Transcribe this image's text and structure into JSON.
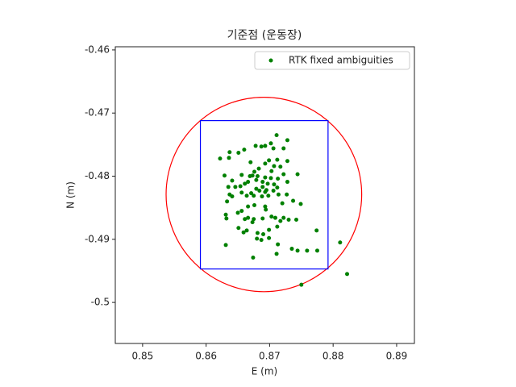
{
  "chart_data": {
    "type": "scatter",
    "title": "기준점 (운동장)",
    "x_label": "E (m)",
    "y_label": "N (m)",
    "xlim": [
      0.8457,
      0.8928
    ],
    "ylim": [
      -0.5065,
      -0.4595
    ],
    "xticks": [
      0.85,
      0.86,
      0.87,
      0.88,
      0.89
    ],
    "yticks": [
      -0.46,
      -0.47,
      -0.48,
      -0.49,
      -0.5
    ],
    "grid": false,
    "legend": "upper right",
    "series": [
      {
        "name": "RTK fixed ambiguities",
        "color": "green",
        "x": [
          0.8711,
          0.8728,
          0.8702,
          0.8693,
          0.8678,
          0.8687,
          0.8706,
          0.8722,
          0.866,
          0.8651,
          0.8637,
          0.8622,
          0.8636,
          0.8712,
          0.8699,
          0.8728,
          0.867,
          0.8693,
          0.8707,
          0.8717,
          0.8683,
          0.8676,
          0.8703,
          0.8722,
          0.8629,
          0.8641,
          0.8656,
          0.8673,
          0.8681,
          0.8693,
          0.8702,
          0.8713,
          0.8744,
          0.8661,
          0.8654,
          0.8666,
          0.8689,
          0.8697,
          0.8707,
          0.8728,
          0.8635,
          0.8646,
          0.8679,
          0.8684,
          0.8671,
          0.8693,
          0.8706,
          0.8714,
          0.8727,
          0.8637,
          0.8641,
          0.8656,
          0.8664,
          0.8675,
          0.8688,
          0.8698,
          0.8633,
          0.8749,
          0.872,
          0.8737,
          0.8666,
          0.8676,
          0.8693,
          0.865,
          0.8631,
          0.8632,
          0.8661,
          0.8666,
          0.8675,
          0.8689,
          0.8703,
          0.8709,
          0.8722,
          0.873,
          0.8742,
          0.8717,
          0.8651,
          0.8664,
          0.8659,
          0.8681,
          0.8699,
          0.8712,
          0.8774,
          0.868,
          0.8687,
          0.8699,
          0.869,
          0.8631,
          0.8713,
          0.8735,
          0.8744,
          0.8759,
          0.8775,
          0.8811,
          0.8711,
          0.8674,
          0.875,
          0.8822,
          0.8669,
          0.8679,
          0.8689,
          0.8695,
          0.8712,
          0.8656,
          0.8673,
          0.8694
        ],
        "y": [
          -0.4735,
          -0.4743,
          -0.4748,
          -0.4752,
          -0.4752,
          -0.4753,
          -0.4756,
          -0.4756,
          -0.4758,
          -0.4763,
          -0.4762,
          -0.4772,
          -0.4771,
          -0.4774,
          -0.4775,
          -0.4776,
          -0.4778,
          -0.478,
          -0.4784,
          -0.4785,
          -0.4788,
          -0.4793,
          -0.4792,
          -0.4797,
          -0.4799,
          -0.4807,
          -0.4798,
          -0.4799,
          -0.48,
          -0.4802,
          -0.4803,
          -0.4804,
          -0.4797,
          -0.4812,
          -0.4816,
          -0.4809,
          -0.4809,
          -0.4812,
          -0.4813,
          -0.4809,
          -0.4817,
          -0.4817,
          -0.482,
          -0.4823,
          -0.4827,
          -0.4825,
          -0.4823,
          -0.4829,
          -0.4829,
          -0.4829,
          -0.4832,
          -0.4826,
          -0.4831,
          -0.4831,
          -0.4832,
          -0.4831,
          -0.484,
          -0.4844,
          -0.4843,
          -0.4839,
          -0.4848,
          -0.4846,
          -0.4848,
          -0.4858,
          -0.4861,
          -0.4867,
          -0.4868,
          -0.4866,
          -0.4868,
          -0.4867,
          -0.4864,
          -0.4866,
          -0.4866,
          -0.4869,
          -0.4869,
          -0.4871,
          -0.4882,
          -0.4886,
          -0.4889,
          -0.489,
          -0.4885,
          -0.488,
          -0.4886,
          -0.4899,
          -0.4901,
          -0.4898,
          -0.4892,
          -0.4909,
          -0.4908,
          -0.4915,
          -0.4918,
          -0.4918,
          -0.4918,
          -0.4905,
          -0.4923,
          -0.4929,
          -0.4972,
          -0.4955,
          -0.48,
          -0.4806,
          -0.4817,
          -0.4822,
          -0.4818,
          -0.4855,
          -0.4873,
          -0.4853
        ]
      }
    ],
    "shapes": [
      {
        "kind": "circle",
        "center": [
          0.8691,
          -0.4829
        ],
        "radius": 0.0154,
        "color": "red"
      },
      {
        "kind": "rectangle",
        "xlim": [
          0.8591,
          0.8792
        ],
        "ylim": [
          -0.4947,
          -0.4712
        ],
        "color": "blue"
      }
    ]
  }
}
